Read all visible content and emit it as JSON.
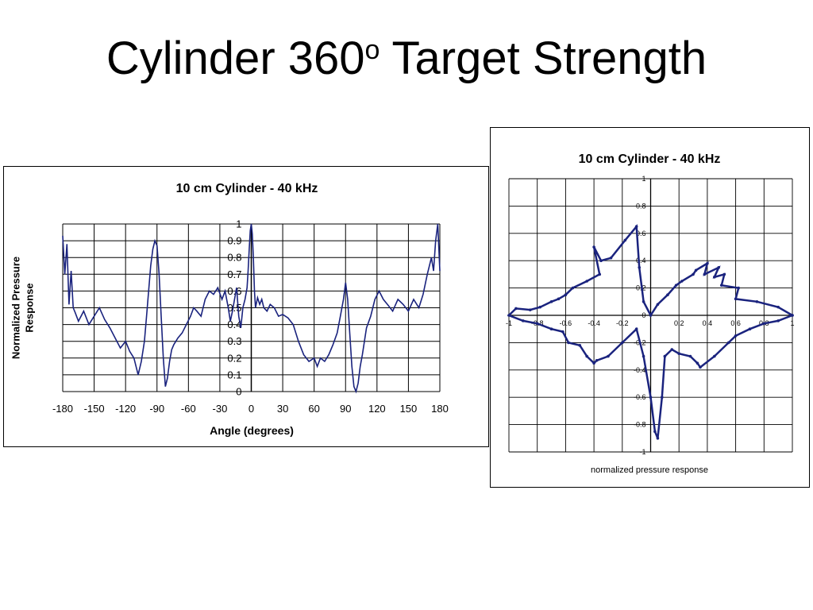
{
  "slide": {
    "title_main": "Cylinder 360",
    "title_sup": "o",
    "title_tail": " Target Strength"
  },
  "colors": {
    "series": "#1a237e",
    "grid": "#000000"
  },
  "chart_data": [
    {
      "type": "line",
      "title": "10 cm Cylinder - 40 kHz",
      "xlabel": "Angle (degrees)",
      "ylabel": "Normalized Pressure Response",
      "xlim": [
        -180,
        180
      ],
      "ylim": [
        0,
        1
      ],
      "x_ticks": [
        -180,
        -150,
        -120,
        -90,
        -60,
        -30,
        0,
        30,
        60,
        90,
        120,
        150,
        180
      ],
      "y_ticks": [
        0,
        0.1,
        0.2,
        0.3,
        0.4,
        0.5,
        0.6,
        0.7,
        0.8,
        0.9,
        1
      ],
      "grid": true,
      "legend": "none",
      "series": [
        {
          "x": [
            -180,
            -178,
            -176,
            -174,
            -172,
            -170,
            -168,
            -165,
            -160,
            -155,
            -150,
            -145,
            -140,
            -135,
            -130,
            -125,
            -120,
            -116,
            -112,
            -108,
            -105,
            -102,
            -100,
            -98,
            -96,
            -94,
            -92,
            -90,
            -88,
            -86,
            -84,
            -82,
            -80,
            -78,
            -76,
            -74,
            -72,
            -70,
            -66,
            -62,
            -58,
            -55,
            -52,
            -48,
            -44,
            -40,
            -36,
            -32,
            -28,
            -25,
            -22,
            -20,
            -18,
            -16,
            -14,
            -12,
            -10,
            -8,
            -6,
            -4,
            -3,
            -2,
            -1,
            0,
            1,
            2,
            3,
            4,
            6,
            8,
            10,
            12,
            15,
            18,
            22,
            26,
            30,
            35,
            40,
            45,
            50,
            55,
            60,
            63,
            66,
            70,
            74,
            78,
            82,
            85,
            88,
            90,
            92,
            94,
            96,
            98,
            100,
            102,
            104,
            106,
            108,
            110,
            114,
            118,
            122,
            126,
            130,
            135,
            140,
            145,
            150,
            155,
            160,
            164,
            168,
            170,
            172,
            174,
            176,
            178,
            180
          ],
          "y": [
            0.93,
            0.7,
            0.88,
            0.52,
            0.72,
            0.5,
            0.47,
            0.42,
            0.48,
            0.4,
            0.45,
            0.5,
            0.43,
            0.38,
            0.32,
            0.26,
            0.3,
            0.24,
            0.2,
            0.1,
            0.18,
            0.3,
            0.45,
            0.6,
            0.75,
            0.85,
            0.9,
            0.87,
            0.7,
            0.45,
            0.2,
            0.03,
            0.08,
            0.18,
            0.25,
            0.28,
            0.3,
            0.32,
            0.35,
            0.4,
            0.45,
            0.5,
            0.48,
            0.45,
            0.55,
            0.6,
            0.58,
            0.62,
            0.55,
            0.6,
            0.5,
            0.42,
            0.48,
            0.55,
            0.62,
            0.45,
            0.38,
            0.5,
            0.55,
            0.62,
            0.72,
            0.85,
            0.96,
            1.0,
            0.94,
            0.8,
            0.6,
            0.5,
            0.56,
            0.52,
            0.55,
            0.5,
            0.48,
            0.52,
            0.5,
            0.45,
            0.46,
            0.44,
            0.4,
            0.3,
            0.22,
            0.18,
            0.2,
            0.15,
            0.2,
            0.18,
            0.22,
            0.28,
            0.35,
            0.45,
            0.55,
            0.65,
            0.55,
            0.35,
            0.15,
            0.03,
            0.0,
            0.05,
            0.15,
            0.22,
            0.3,
            0.38,
            0.45,
            0.55,
            0.6,
            0.55,
            0.52,
            0.48,
            0.55,
            0.52,
            0.48,
            0.55,
            0.5,
            0.58,
            0.7,
            0.75,
            0.8,
            0.72,
            0.9,
            1.0,
            0.72
          ]
        }
      ]
    },
    {
      "type": "scatter",
      "title": "10 cm Cylinder - 40 kHz",
      "xlabel": "normalized pressure response",
      "ylabel": "",
      "xlim": [
        -1,
        1
      ],
      "ylim": [
        -1,
        1
      ],
      "x_ticks": [
        -1,
        -0.8,
        -0.6,
        -0.4,
        -0.2,
        0,
        0.2,
        0.4,
        0.6,
        0.8,
        1
      ],
      "y_ticks": [
        -1,
        -0.8,
        -0.6,
        -0.4,
        -0.2,
        0,
        0.2,
        0.4,
        0.6,
        0.8,
        1
      ],
      "grid": true,
      "legend": "none",
      "series": [
        {
          "x": [
            1.0,
            0.9,
            0.75,
            0.6,
            0.62,
            0.5,
            0.52,
            0.45,
            0.48,
            0.38,
            0.4,
            0.32,
            0.3,
            0.22,
            0.18,
            0.12,
            0.05,
            0.0,
            -0.05,
            -0.08,
            -0.1,
            -0.18,
            -0.28,
            -0.35,
            -0.4,
            -0.36,
            -0.45,
            -0.55,
            -0.6,
            -0.65,
            -0.7,
            -0.78,
            -0.85,
            -0.95,
            -1.0,
            -0.9,
            -0.8,
            -0.7,
            -0.62,
            -0.58,
            -0.5,
            -0.45,
            -0.4,
            -0.38,
            -0.3,
            -0.2,
            -0.1,
            -0.05,
            0.0,
            0.03,
            0.05,
            0.08,
            0.1,
            0.15,
            0.2,
            0.28,
            0.33,
            0.35,
            0.45,
            0.55,
            0.6,
            0.7,
            0.8,
            0.9,
            1.0
          ],
          "y": [
            0.0,
            0.06,
            0.1,
            0.12,
            0.2,
            0.22,
            0.3,
            0.28,
            0.35,
            0.3,
            0.38,
            0.33,
            0.3,
            0.25,
            0.22,
            0.15,
            0.08,
            0.0,
            0.1,
            0.35,
            0.65,
            0.55,
            0.42,
            0.4,
            0.5,
            0.3,
            0.25,
            0.2,
            0.15,
            0.12,
            0.1,
            0.06,
            0.04,
            0.05,
            0.0,
            -0.04,
            -0.06,
            -0.1,
            -0.12,
            -0.2,
            -0.22,
            -0.3,
            -0.35,
            -0.33,
            -0.3,
            -0.2,
            -0.1,
            -0.3,
            -0.6,
            -0.85,
            -0.9,
            -0.6,
            -0.3,
            -0.25,
            -0.28,
            -0.3,
            -0.35,
            -0.38,
            -0.3,
            -0.2,
            -0.15,
            -0.1,
            -0.06,
            -0.04,
            0.0
          ]
        }
      ]
    }
  ]
}
